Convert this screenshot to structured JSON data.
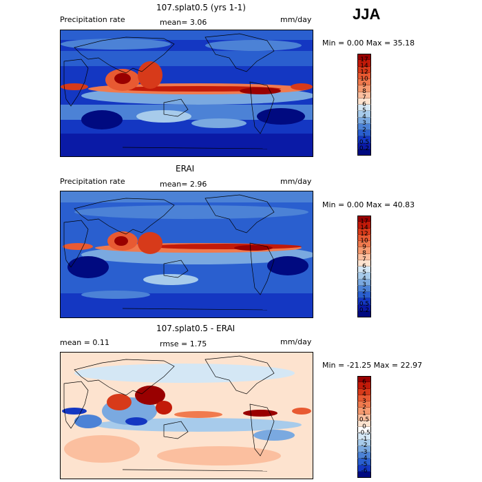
{
  "season": "JJA",
  "panels": [
    {
      "id": "model",
      "title": "107.splat0.5 (yrs 1-1)",
      "left_label": "Precipitation rate",
      "center_label": "mean=   3.06",
      "units": "mm/day",
      "minmax": "Min =    0.00 Max =   35.18",
      "levels": [
        "17",
        "14",
        "12",
        "10",
        "9",
        "8",
        "7",
        "6",
        "5",
        "4",
        "3",
        "2",
        "1",
        "0.5",
        "0.2"
      ],
      "colors": [
        "#990000",
        "#c21a09",
        "#d73a1a",
        "#e85a32",
        "#f07a4e",
        "#f69a70",
        "#fbbf9f",
        "#fde3cf",
        "#d4e7f5",
        "#a7cbeb",
        "#7aa9e0",
        "#4c82d6",
        "#2a5fcf",
        "#1437c2",
        "#0a1aa6",
        "#000a80"
      ]
    },
    {
      "id": "obs",
      "title": "ERAI",
      "left_label": "Precipitation rate",
      "center_label": "mean=   2.96",
      "units": "mm/day",
      "minmax": "Min =    0.00 Max =   40.83",
      "levels": [
        "17",
        "14",
        "12",
        "10",
        "9",
        "8",
        "7",
        "6",
        "5",
        "4",
        "3",
        "2",
        "1",
        "0.5",
        "0.2"
      ],
      "colors": [
        "#990000",
        "#c21a09",
        "#d73a1a",
        "#e85a32",
        "#f07a4e",
        "#f69a70",
        "#fbbf9f",
        "#fde3cf",
        "#d4e7f5",
        "#a7cbeb",
        "#7aa9e0",
        "#4c82d6",
        "#2a5fcf",
        "#1437c2",
        "#0a1aa6",
        "#000a80"
      ]
    },
    {
      "id": "diff",
      "title": "107.splat0.5 - ERAI",
      "left_label": "mean =    0.11",
      "center_label": "rmse =    1.75",
      "units": "mm/day",
      "minmax": "Min = -21.25 Max =   22.97",
      "levels": [
        "6",
        "5",
        "4",
        "3",
        "2",
        "1",
        "0.5",
        "0",
        "-0.5",
        "-1",
        "-2",
        "-3",
        "-4",
        "-5",
        "-6"
      ],
      "colors": [
        "#990000",
        "#c21a09",
        "#d73a1a",
        "#e85a32",
        "#f07a4e",
        "#f69a70",
        "#fbbf9f",
        "#fde3cf",
        "#ffffff",
        "#d4e7f5",
        "#a7cbeb",
        "#7aa9e0",
        "#4c82d6",
        "#2a5fcf",
        "#1437c2",
        "#000a80"
      ]
    }
  ]
}
